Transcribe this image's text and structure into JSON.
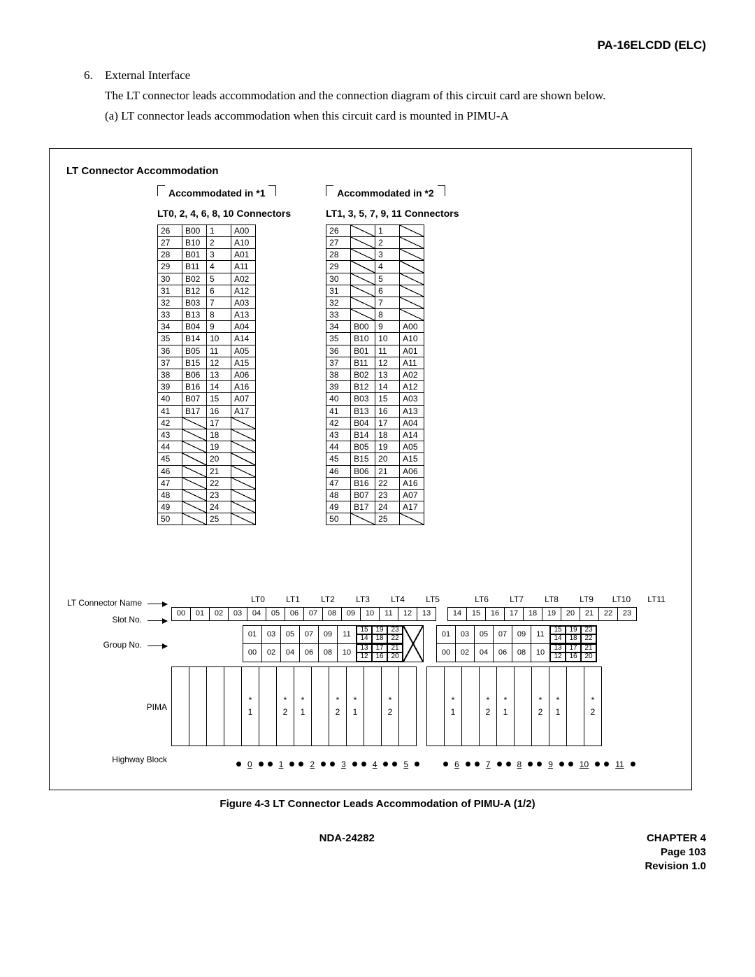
{
  "header": {
    "model": "PA-16ELCDD (ELC)"
  },
  "body": {
    "list_num": "6.",
    "list_title": "External Interface",
    "p1": "The LT connector leads accommodation and the connection diagram of this circuit card are shown below.",
    "p2": "(a)  LT connector leads accommodation when this circuit card is mounted in PIMU-A"
  },
  "figure": {
    "section_title": "LT Connector Accommodation",
    "left": {
      "subtitle": "Accommodated in *1",
      "label": "LT0, 2, 4, 6, 8, 10 Connectors",
      "rows": [
        [
          "26",
          "B00",
          "1",
          "A00"
        ],
        [
          "27",
          "B10",
          "2",
          "A10"
        ],
        [
          "28",
          "B01",
          "3",
          "A01"
        ],
        [
          "29",
          "B11",
          "4",
          "A11"
        ],
        [
          "30",
          "B02",
          "5",
          "A02"
        ],
        [
          "31",
          "B12",
          "6",
          "A12"
        ],
        [
          "32",
          "B03",
          "7",
          "A03"
        ],
        [
          "33",
          "B13",
          "8",
          "A13"
        ],
        [
          "34",
          "B04",
          "9",
          "A04"
        ],
        [
          "35",
          "B14",
          "10",
          "A14"
        ],
        [
          "36",
          "B05",
          "11",
          "A05"
        ],
        [
          "37",
          "B15",
          "12",
          "A15"
        ],
        [
          "38",
          "B06",
          "13",
          "A06"
        ],
        [
          "39",
          "B16",
          "14",
          "A16"
        ],
        [
          "40",
          "B07",
          "15",
          "A07"
        ],
        [
          "41",
          "B17",
          "16",
          "A17"
        ],
        [
          "42",
          "",
          "17",
          ""
        ],
        [
          "43",
          "",
          "18",
          ""
        ],
        [
          "44",
          "",
          "19",
          ""
        ],
        [
          "45",
          "",
          "20",
          ""
        ],
        [
          "46",
          "",
          "21",
          ""
        ],
        [
          "47",
          "",
          "22",
          ""
        ],
        [
          "48",
          "",
          "23",
          ""
        ],
        [
          "49",
          "",
          "24",
          ""
        ],
        [
          "50",
          "",
          "25",
          ""
        ]
      ]
    },
    "right": {
      "subtitle": "Accommodated in *2",
      "label": "LT1, 3, 5, 7, 9, 11 Connectors",
      "rows": [
        [
          "26",
          "",
          "1",
          ""
        ],
        [
          "27",
          "",
          "2",
          ""
        ],
        [
          "28",
          "",
          "3",
          ""
        ],
        [
          "29",
          "",
          "4",
          ""
        ],
        [
          "30",
          "",
          "5",
          ""
        ],
        [
          "31",
          "",
          "6",
          ""
        ],
        [
          "32",
          "",
          "7",
          ""
        ],
        [
          "33",
          "",
          "8",
          ""
        ],
        [
          "34",
          "B00",
          "9",
          "A00"
        ],
        [
          "35",
          "B10",
          "10",
          "A10"
        ],
        [
          "36",
          "B01",
          "11",
          "A01"
        ],
        [
          "37",
          "B11",
          "12",
          "A11"
        ],
        [
          "38",
          "B02",
          "13",
          "A02"
        ],
        [
          "39",
          "B12",
          "14",
          "A12"
        ],
        [
          "40",
          "B03",
          "15",
          "A03"
        ],
        [
          "41",
          "B13",
          "16",
          "A13"
        ],
        [
          "42",
          "B04",
          "17",
          "A04"
        ],
        [
          "43",
          "B14",
          "18",
          "A14"
        ],
        [
          "44",
          "B05",
          "19",
          "A05"
        ],
        [
          "45",
          "B15",
          "20",
          "A15"
        ],
        [
          "46",
          "B06",
          "21",
          "A06"
        ],
        [
          "47",
          "B16",
          "22",
          "A16"
        ],
        [
          "48",
          "B07",
          "23",
          "A07"
        ],
        [
          "49",
          "B17",
          "24",
          "A17"
        ],
        [
          "50",
          "",
          "25",
          ""
        ]
      ]
    },
    "lower_labels": {
      "lt_name": "LT Connector Name",
      "slot": "Slot No.",
      "group": "Group No.",
      "pima": "PIMA",
      "hb": "Highway Block"
    },
    "lt_names": [
      "LT0",
      "LT1",
      "LT2",
      "LT3",
      "LT4",
      "LT5",
      "",
      "LT6",
      "LT7",
      "LT8",
      "LT9",
      "LT10",
      "LT11"
    ],
    "slots": [
      "00",
      "01",
      "02",
      "03",
      "04",
      "05",
      "06",
      "07",
      "08",
      "09",
      "10",
      "11",
      "12",
      "13",
      "14",
      "15",
      "16",
      "17",
      "18",
      "19",
      "20",
      "21",
      "22",
      "23"
    ],
    "group_left": {
      "simple_top": [
        "01",
        "03",
        "05",
        "07",
        "09",
        "11"
      ],
      "simple_bot": [
        "00",
        "02",
        "04",
        "06",
        "08",
        "10"
      ],
      "quads": [
        [
          "15",
          "19",
          "23",
          "14",
          "18",
          "22"
        ],
        [
          "13",
          "17",
          "21",
          "12",
          "16",
          "20"
        ]
      ]
    },
    "pima_cells": [
      "",
      "",
      "",
      "",
      "*\n1",
      "",
      "*\n2",
      "*\n1",
      "",
      "*\n2",
      "*\n1",
      "",
      "*\n2",
      "",
      "",
      "*\n1",
      "",
      "*\n2",
      "*\n1",
      "",
      "*\n2",
      "*\n1",
      "",
      "*\n2"
    ],
    "hb": [
      "0",
      "1",
      "2",
      "3",
      "4",
      "5",
      "",
      "6",
      "7",
      "8",
      "9",
      "10",
      "11"
    ]
  },
  "caption": "Figure 4-3   LT Connector Leads Accommodation of PIMU-A (1/2)",
  "footer": {
    "doc": "NDA-24282",
    "chapter": "CHAPTER 4",
    "page": "Page 103",
    "rev": "Revision 1.0"
  }
}
